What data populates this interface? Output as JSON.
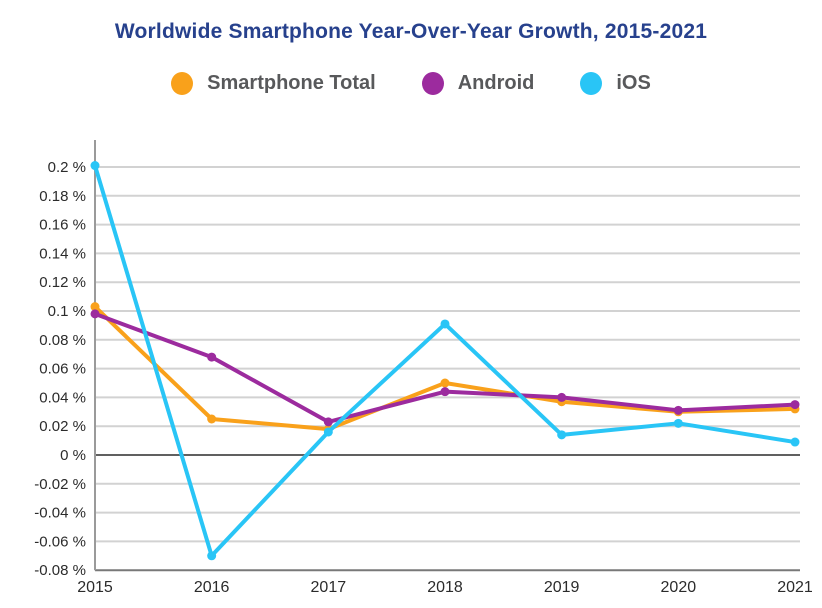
{
  "header": {
    "title": "Worldwide Smartphone Year-Over-Year Growth, 2015-2021",
    "title_color": "#27418D"
  },
  "legend": {
    "position": "top",
    "items": [
      {
        "label": "Smartphone Total",
        "color": "#F9A11B"
      },
      {
        "label": "Android",
        "color": "#9C2B9E"
      },
      {
        "label": "iOS",
        "color": "#29C5F6"
      }
    ]
  },
  "chart_data": {
    "type": "line",
    "title": "Worldwide Smartphone Year-Over-Year Growth, 2015-2021",
    "x": [
      "2015",
      "2016",
      "2017",
      "2018",
      "2019",
      "2020",
      "2021"
    ],
    "series": [
      {
        "name": "Smartphone Total",
        "color": "#F9A11B",
        "values": [
          0.103,
          0.025,
          0.018,
          0.05,
          0.037,
          0.03,
          0.032
        ]
      },
      {
        "name": "Android",
        "color": "#9C2B9E",
        "values": [
          0.098,
          0.068,
          0.023,
          0.044,
          0.04,
          0.031,
          0.035
        ]
      },
      {
        "name": "iOS",
        "color": "#29C5F6",
        "values": [
          0.201,
          -0.07,
          0.016,
          0.091,
          0.014,
          0.022,
          0.009
        ]
      }
    ],
    "xlabel": "",
    "ylabel": "",
    "ylim": [
      -0.08,
      0.2
    ],
    "y_ticks": [
      0.2,
      0.18,
      0.16,
      0.14,
      0.12,
      0.1,
      0.08,
      0.06,
      0.04,
      0.02,
      0,
      -0.02,
      -0.04,
      -0.06,
      -0.08
    ],
    "y_tick_labels": [
      "0.2 %",
      "0.18 %",
      "0.16 %",
      "0.14 %",
      "0.12 %",
      "0.1 %",
      "0.08 %",
      "0.06 %",
      "0.04 %",
      "0.02 %",
      "0 %",
      "-0.02 %",
      "-0.04 %",
      "-0.06 %",
      "-0.08 %"
    ],
    "grid": true,
    "legend_position": "top",
    "colors": {
      "gridline": "#D2D2D2",
      "zero_line": "#606060",
      "bottom_line": "#787878",
      "y_axis_line": "#9A9A9A",
      "tick_text": "#2B2B2B"
    }
  }
}
